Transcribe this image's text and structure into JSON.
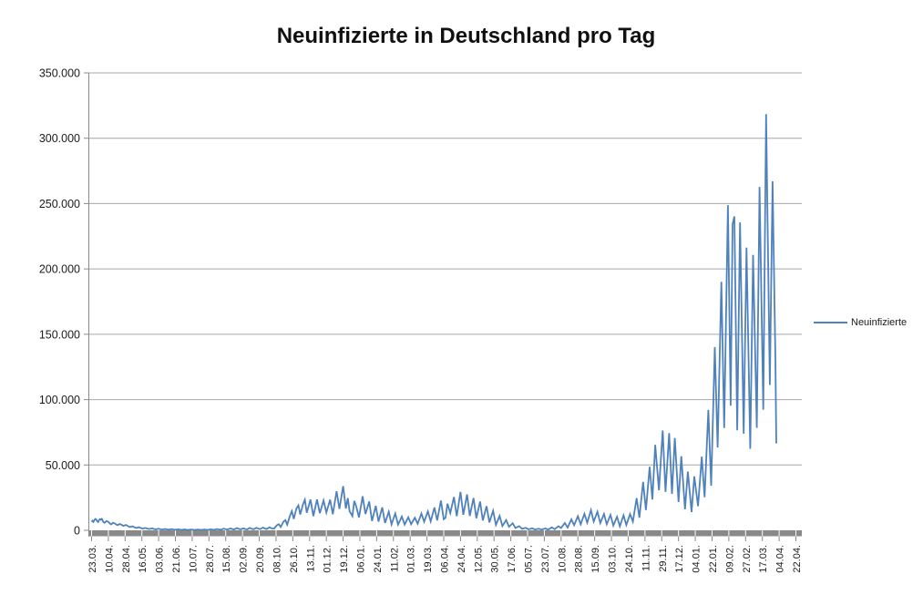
{
  "chart_data": {
    "type": "line",
    "title": "Neuinfizierte in Deutschland pro Tag",
    "xlabel": "",
    "ylabel": "",
    "ylim": [
      0,
      350000
    ],
    "grid": "horizontal",
    "y_ticks": {
      "values": [
        0,
        50000,
        100000,
        150000,
        200000,
        250000,
        300000,
        350000
      ],
      "labels": [
        "0",
        "50.000",
        "100.000",
        "150.000",
        "200.000",
        "250.000",
        "300.000",
        "350.000"
      ]
    },
    "x_ticks": {
      "interval_days": 18,
      "labels": [
        "23.03.",
        "10.04.",
        "28.04.",
        "16.05.",
        "03.06.",
        "21.06.",
        "10.07.",
        "28.07.",
        "15.08.",
        "02.09.",
        "20.09.",
        "08.10.",
        "26.10.",
        "13.11.",
        "01.12.",
        "19.12.",
        "06.01.",
        "24.01.",
        "11.02.",
        "01.03.",
        "19.03.",
        "06.04.",
        "24.04.",
        "12.05.",
        "30.05.",
        "17.06.",
        "05.07.",
        "23.07.",
        "10.08.",
        "28.08.",
        "15.09.",
        "03.10.",
        "24.10.",
        "11.11.",
        "29.11.",
        "17.12.",
        "04.01.",
        "22.01.",
        "09.02.",
        "27.02.",
        "17.03.",
        "04.04.",
        "22.04."
      ]
    },
    "legend": {
      "position": "right",
      "entries": [
        {
          "label": "Neuinfizierte",
          "color": "#4F81BD"
        }
      ]
    },
    "colors": {
      "line": "#4F81BD",
      "gridline": "#A6A6A6",
      "axis": "#898989",
      "tick_text": "#1a1a1a",
      "title_text": "#111111",
      "background": "#ffffff"
    },
    "series": [
      {
        "name": "Neuinfizierte",
        "color": "#4F81BD",
        "points_day_value": [
          [
            0,
            6500
          ],
          [
            1,
            7300
          ],
          [
            2,
            6400
          ],
          [
            3,
            7900
          ],
          [
            4,
            8700
          ],
          [
            5,
            8300
          ],
          [
            6,
            6900
          ],
          [
            7,
            6300
          ],
          [
            8,
            7800
          ],
          [
            9,
            8500
          ],
          [
            10,
            8100
          ],
          [
            11,
            8700
          ],
          [
            12,
            7200
          ],
          [
            13,
            6100
          ],
          [
            14,
            5800
          ],
          [
            16,
            7100
          ],
          [
            18,
            6500
          ],
          [
            20,
            5000
          ],
          [
            21,
            4500
          ],
          [
            23,
            5800
          ],
          [
            25,
            5200
          ],
          [
            27,
            4200
          ],
          [
            28,
            3900
          ],
          [
            30,
            4900
          ],
          [
            32,
            4300
          ],
          [
            34,
            3400
          ],
          [
            37,
            4100
          ],
          [
            39,
            3200
          ],
          [
            41,
            2500
          ],
          [
            44,
            3100
          ],
          [
            46,
            2300
          ],
          [
            48,
            1800
          ],
          [
            51,
            2400
          ],
          [
            53,
            1700
          ],
          [
            55,
            1300
          ],
          [
            58,
            1800
          ],
          [
            60,
            1300
          ],
          [
            62,
            1000
          ],
          [
            65,
            1500
          ],
          [
            67,
            1000
          ],
          [
            69,
            800
          ],
          [
            72,
            1200
          ],
          [
            74,
            800
          ],
          [
            76,
            600
          ],
          [
            79,
            1000
          ],
          [
            81,
            700
          ],
          [
            83,
            500
          ],
          [
            86,
            900
          ],
          [
            88,
            600
          ],
          [
            90,
            400
          ],
          [
            93,
            800
          ],
          [
            95,
            500
          ],
          [
            97,
            350
          ],
          [
            100,
            700
          ],
          [
            102,
            450
          ],
          [
            104,
            320
          ],
          [
            107,
            650
          ],
          [
            109,
            420
          ],
          [
            111,
            300
          ],
          [
            114,
            600
          ],
          [
            116,
            400
          ],
          [
            118,
            320
          ],
          [
            121,
            650
          ],
          [
            123,
            450
          ],
          [
            125,
            350
          ],
          [
            128,
            750
          ],
          [
            130,
            500
          ],
          [
            132,
            400
          ],
          [
            135,
            950
          ],
          [
            137,
            650
          ],
          [
            139,
            500
          ],
          [
            142,
            1250
          ],
          [
            144,
            850
          ],
          [
            146,
            600
          ],
          [
            149,
            1450
          ],
          [
            151,
            950
          ],
          [
            153,
            700
          ],
          [
            156,
            1700
          ],
          [
            158,
            1100
          ],
          [
            160,
            800
          ],
          [
            163,
            1550
          ],
          [
            165,
            1000
          ],
          [
            167,
            750
          ],
          [
            170,
            1800
          ],
          [
            172,
            1150
          ],
          [
            174,
            850
          ],
          [
            177,
            1900
          ],
          [
            179,
            1250
          ],
          [
            181,
            900
          ],
          [
            184,
            2100
          ],
          [
            186,
            1400
          ],
          [
            188,
            1000
          ],
          [
            191,
            2300
          ],
          [
            193,
            1500
          ],
          [
            195,
            1300
          ],
          [
            196,
            1400
          ],
          [
            199,
            4000
          ],
          [
            201,
            4700
          ],
          [
            203,
            2500
          ],
          [
            206,
            6600
          ],
          [
            208,
            7800
          ],
          [
            210,
            4300
          ],
          [
            213,
            11300
          ],
          [
            215,
            14700
          ],
          [
            217,
            8700
          ],
          [
            220,
            16800
          ],
          [
            222,
            19100
          ],
          [
            224,
            12100
          ],
          [
            227,
            20000
          ],
          [
            229,
            23400
          ],
          [
            231,
            13400
          ],
          [
            235,
            23500
          ],
          [
            238,
            10800
          ],
          [
            242,
            23600
          ],
          [
            245,
            13100
          ],
          [
            249,
            22800
          ],
          [
            252,
            13600
          ],
          [
            256,
            23400
          ],
          [
            259,
            12300
          ],
          [
            263,
            29900
          ],
          [
            266,
            16400
          ],
          [
            270,
            33800
          ],
          [
            273,
            16600
          ],
          [
            275,
            24700
          ],
          [
            277,
            14500
          ],
          [
            280,
            10900
          ],
          [
            282,
            22500
          ],
          [
            284,
            18500
          ],
          [
            287,
            9800
          ],
          [
            291,
            26000
          ],
          [
            294,
            12500
          ],
          [
            298,
            22000
          ],
          [
            301,
            7100
          ],
          [
            305,
            18700
          ],
          [
            308,
            6700
          ],
          [
            312,
            17600
          ],
          [
            315,
            5600
          ],
          [
            319,
            14200
          ],
          [
            322,
            4500
          ],
          [
            326,
            12900
          ],
          [
            329,
            4400
          ],
          [
            333,
            10500
          ],
          [
            336,
            4400
          ],
          [
            340,
            10000
          ],
          [
            343,
            4700
          ],
          [
            347,
            9600
          ],
          [
            350,
            5000
          ],
          [
            354,
            12800
          ],
          [
            357,
            6600
          ],
          [
            361,
            14400
          ],
          [
            364,
            6800
          ],
          [
            368,
            17500
          ],
          [
            371,
            7500
          ],
          [
            375,
            22700
          ],
          [
            378,
            8500
          ],
          [
            380,
            9700
          ],
          [
            382,
            20400
          ],
          [
            385,
            13200
          ],
          [
            389,
            25500
          ],
          [
            392,
            10800
          ],
          [
            396,
            29400
          ],
          [
            399,
            11900
          ],
          [
            403,
            27500
          ],
          [
            406,
            11000
          ],
          [
            410,
            24700
          ],
          [
            413,
            9200
          ],
          [
            417,
            22000
          ],
          [
            420,
            7500
          ],
          [
            424,
            18500
          ],
          [
            427,
            6100
          ],
          [
            431,
            14900
          ],
          [
            434,
            4200
          ],
          [
            438,
            11000
          ],
          [
            441,
            3300
          ],
          [
            445,
            7900
          ],
          [
            448,
            2700
          ],
          [
            452,
            5400
          ],
          [
            455,
            1800
          ],
          [
            459,
            3200
          ],
          [
            462,
            1100
          ],
          [
            466,
            1900
          ],
          [
            469,
            800
          ],
          [
            473,
            1500
          ],
          [
            476,
            600
          ],
          [
            480,
            1200
          ],
          [
            483,
            550
          ],
          [
            487,
            1400
          ],
          [
            490,
            550
          ],
          [
            494,
            2200
          ],
          [
            497,
            850
          ],
          [
            501,
            3100
          ],
          [
            504,
            1800
          ],
          [
            508,
            5600
          ],
          [
            511,
            2100
          ],
          [
            515,
            8400
          ],
          [
            518,
            3900
          ],
          [
            522,
            10800
          ],
          [
            525,
            4600
          ],
          [
            529,
            12600
          ],
          [
            532,
            5800
          ],
          [
            536,
            15400
          ],
          [
            539,
            6700
          ],
          [
            543,
            14300
          ],
          [
            546,
            5500
          ],
          [
            550,
            12500
          ],
          [
            553,
            4700
          ],
          [
            557,
            11800
          ],
          [
            560,
            3700
          ],
          [
            564,
            10400
          ],
          [
            567,
            3100
          ],
          [
            571,
            11500
          ],
          [
            574,
            4100
          ],
          [
            578,
            12400
          ],
          [
            581,
            6600
          ],
          [
            585,
            24700
          ],
          [
            588,
            9700
          ],
          [
            592,
            37100
          ],
          [
            595,
            15500
          ],
          [
            599,
            48600
          ],
          [
            602,
            23600
          ],
          [
            605,
            65400
          ],
          [
            609,
            30600
          ],
          [
            613,
            76400
          ],
          [
            616,
            29400
          ],
          [
            620,
            74400
          ],
          [
            623,
            27800
          ],
          [
            626,
            70600
          ],
          [
            630,
            21700
          ],
          [
            633,
            56700
          ],
          [
            637,
            16100
          ],
          [
            640,
            44900
          ],
          [
            644,
            13900
          ],
          [
            647,
            41200
          ],
          [
            651,
            18500
          ],
          [
            655,
            56300
          ],
          [
            658,
            25300
          ],
          [
            662,
            92200
          ],
          [
            665,
            34100
          ],
          [
            669,
            140200
          ],
          [
            672,
            63400
          ],
          [
            676,
            190100
          ],
          [
            679,
            78300
          ],
          [
            683,
            248800
          ],
          [
            686,
            95300
          ],
          [
            688,
            234300
          ],
          [
            690,
            240200
          ],
          [
            693,
            76500
          ],
          [
            696,
            235600
          ],
          [
            700,
            73900
          ],
          [
            703,
            216300
          ],
          [
            707,
            62300
          ],
          [
            710,
            210700
          ],
          [
            714,
            78400
          ],
          [
            717,
            262800
          ],
          [
            721,
            92300
          ],
          [
            724,
            318400
          ],
          [
            728,
            111200
          ],
          [
            731,
            267000
          ],
          [
            734,
            131800
          ],
          [
            735,
            66500
          ]
        ]
      }
    ]
  }
}
